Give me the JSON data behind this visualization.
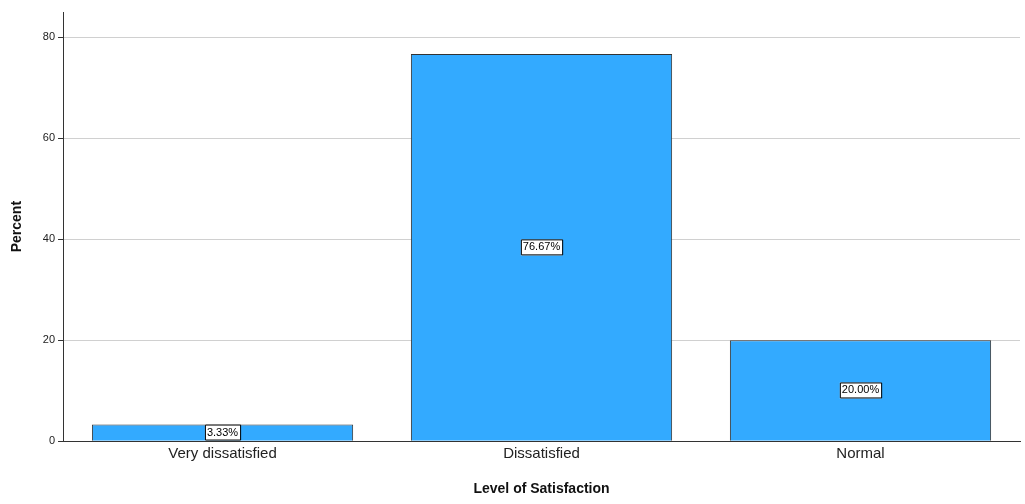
{
  "chart_data": {
    "type": "bar",
    "xlabel": "Level of Satisfaction",
    "ylabel": "Percent",
    "categories": [
      "Very dissatisfied",
      "Dissatisfied",
      "Normal"
    ],
    "values": [
      3.33,
      76.67,
      20.0
    ],
    "value_labels": [
      "3.33%",
      "76.67%",
      "20.00%"
    ],
    "color": "#33aaff",
    "ylim": [
      0,
      85
    ],
    "yticks": [
      0,
      20,
      40,
      60,
      80
    ],
    "grid": "y",
    "legend": false
  }
}
